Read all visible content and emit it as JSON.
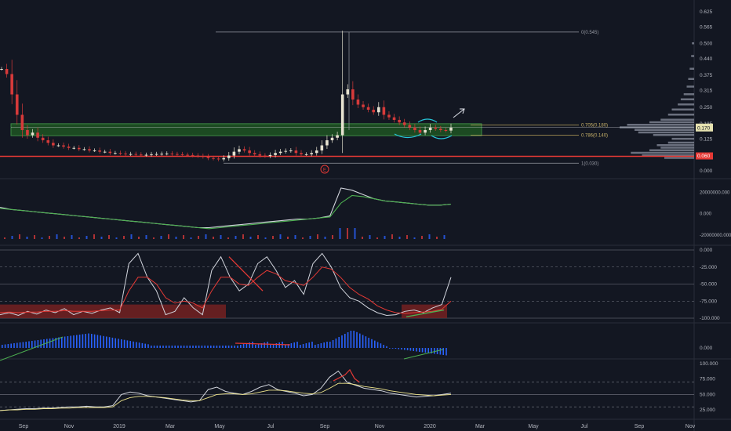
{
  "colors": {
    "background": "#131722",
    "grid": "#2a2e39",
    "up": "#e6e2d0",
    "down": "#d63a3a",
    "zone_fill": "#1f5c22",
    "zone_stroke": "#4caf50",
    "support_line": "#e53935",
    "white_line": "#d1d4dc",
    "red_line": "#e53935",
    "hist_blue": "#2962ff",
    "green_line": "#4caf50",
    "yellow_line": "#f0e68c",
    "oversold_fill": "#7a2222"
  },
  "chart_data": [
    {
      "type": "candlestick",
      "panel": "price",
      "y_ticks": [
        "0.625",
        "0.565",
        "0.500",
        "0.440",
        "0.375",
        "0.315",
        "0.250",
        "0.185",
        "0.125",
        "0.060",
        "0.000"
      ],
      "ylim": [
        0,
        0.64
      ],
      "current_price_label": "0.170",
      "current_price": 0.17,
      "support_label": "0.060",
      "support_price": 0.06,
      "fib_levels": [
        {
          "label": "0(0.545)",
          "price": 0.545
        },
        {
          "label": "0.705(0.180)",
          "price": 0.18
        },
        {
          "label": "0.786(0.140)",
          "price": 0.14
        },
        {
          "label": "1(0.030)",
          "price": 0.03
        }
      ],
      "accumulation_zone": [
        0.14,
        0.18
      ],
      "event_marker": "E",
      "close_series": [
        0.4,
        0.38,
        0.3,
        0.22,
        0.16,
        0.14,
        0.15,
        0.13,
        0.12,
        0.11,
        0.1,
        0.1,
        0.095,
        0.09,
        0.09,
        0.085,
        0.085,
        0.08,
        0.08,
        0.075,
        0.075,
        0.07,
        0.07,
        0.068,
        0.065,
        0.066,
        0.064,
        0.062,
        0.063,
        0.065,
        0.066,
        0.067,
        0.068,
        0.066,
        0.065,
        0.063,
        0.062,
        0.06,
        0.058,
        0.055,
        0.05,
        0.048,
        0.045,
        0.05,
        0.06,
        0.075,
        0.085,
        0.08,
        0.07,
        0.065,
        0.06,
        0.058,
        0.062,
        0.07,
        0.075,
        0.078,
        0.08,
        0.07,
        0.065,
        0.065,
        0.07,
        0.08,
        0.1,
        0.12,
        0.13,
        0.14,
        0.3,
        0.32,
        0.28,
        0.26,
        0.25,
        0.24,
        0.23,
        0.25,
        0.22,
        0.21,
        0.2,
        0.19,
        0.18,
        0.17,
        0.16,
        0.15,
        0.16,
        0.17,
        0.165,
        0.16,
        0.158,
        0.17
      ]
    },
    {
      "type": "line",
      "panel": "volume_oscillator",
      "y_ticks": [
        "20000000.000",
        "0.000",
        "-20000000.000"
      ],
      "series": [
        {
          "color_key": "white_line",
          "values": [
            6000000.0,
            4000000.0,
            3000000.0,
            2000000.0,
            1000000.0,
            0,
            -1000000.0,
            -2000000.0,
            -3000000.0,
            -4000000.0,
            -5000000.0,
            -6000000.0,
            -7000000.0,
            -8000000.0,
            -9000000.0,
            -10000000.0,
            -11000000.0,
            -12000000.0,
            -13000000.0,
            -13000000.0,
            -12000000.0,
            -11000000.0,
            -10000000.0,
            -9000000.0,
            -8000000.0,
            -7000000.0,
            -6000000.0,
            -5000000.0,
            -5000000.0,
            -4000000.0,
            -2000000.0,
            24000000.0,
            22000000.0,
            18000000.0,
            14000000.0,
            12000000.0,
            11000000.0,
            10000000.0,
            9000000.0,
            8000000.0,
            8000000.0,
            9000000.0
          ]
        },
        {
          "color_key": "green_line",
          "values": [
            5000000.0,
            4000000.0,
            3000000.0,
            2000000.0,
            1000000.0,
            0,
            -1000000.0,
            -2000000.0,
            -3000000.0,
            -4000000.0,
            -5000000.0,
            -6000000.0,
            -7000000.0,
            -8000000.0,
            -9000000.0,
            -10000000.0,
            -11000000.0,
            -12000000.0,
            -13000000.0,
            -14000000.0,
            -13000000.0,
            -12000000.0,
            -11000000.0,
            -10000000.0,
            -9000000.0,
            -8000000.0,
            -7000000.0,
            -6000000.0,
            -5000000.0,
            -4000000.0,
            -3000000.0,
            10000000.0,
            17000000.0,
            16000000.0,
            14000000.0,
            12000000.0,
            11000000.0,
            10000000.0,
            9000000.0,
            8000000.0,
            8000000.0,
            9000000.0
          ]
        }
      ]
    },
    {
      "type": "line",
      "panel": "williams_r",
      "y_ticks": [
        "0.000",
        "-25.000",
        "-50.000",
        "-75.000",
        "-100.000"
      ],
      "ylim": [
        -100,
        0
      ],
      "series": [
        {
          "color_key": "white_line",
          "values": [
            -95,
            -92,
            -96,
            -90,
            -94,
            -88,
            -92,
            -86,
            -95,
            -90,
            -93,
            -88,
            -85,
            -92,
            -20,
            -5,
            -40,
            -60,
            -95,
            -90,
            -70,
            -85,
            -95,
            -30,
            -10,
            -40,
            -60,
            -50,
            -20,
            -10,
            -30,
            -55,
            -45,
            -65,
            -20,
            -5,
            -25,
            -55,
            -70,
            -75,
            -85,
            -92,
            -96,
            -95,
            -90,
            -88,
            -92,
            -85,
            -80,
            -40
          ]
        },
        {
          "color_key": "red_line",
          "values": [
            -92,
            -91,
            -92,
            -91,
            -91,
            -90,
            -90,
            -89,
            -90,
            -90,
            -90,
            -89,
            -88,
            -88,
            -60,
            -40,
            -40,
            -50,
            -70,
            -78,
            -75,
            -78,
            -85,
            -60,
            -40,
            -40,
            -50,
            -52,
            -40,
            -30,
            -35,
            -45,
            -48,
            -52,
            -40,
            -25,
            -28,
            -40,
            -55,
            -65,
            -72,
            -82,
            -88,
            -92,
            -93,
            -92,
            -91,
            -90,
            -87,
            -75
          ]
        }
      ]
    },
    {
      "type": "bar",
      "panel": "histogram",
      "y_ticks": [
        "0.000"
      ]
    },
    {
      "type": "line",
      "panel": "rsi",
      "y_ticks": [
        "100.000",
        "75.000",
        "50.000",
        "25.000"
      ],
      "ylim": [
        15,
        100
      ],
      "series": [
        {
          "color_key": "white_line",
          "values": [
            24,
            25,
            26,
            27,
            27,
            28,
            28,
            29,
            30,
            30,
            31,
            30,
            30,
            32,
            50,
            54,
            52,
            48,
            46,
            44,
            42,
            40,
            38,
            40,
            58,
            62,
            55,
            52,
            50,
            55,
            62,
            66,
            58,
            55,
            52,
            48,
            50,
            60,
            78,
            88,
            70,
            65,
            60,
            58,
            56,
            52,
            50,
            48,
            46,
            47,
            48,
            50,
            52
          ]
        },
        {
          "color_key": "yellow_line",
          "values": [
            24,
            25,
            25,
            26,
            26,
            27,
            27,
            28,
            28,
            29,
            29,
            29,
            29,
            30,
            40,
            45,
            47,
            47,
            46,
            45,
            43,
            41,
            40,
            40,
            45,
            50,
            51,
            51,
            50,
            51,
            54,
            57,
            57,
            56,
            54,
            52,
            51,
            53,
            60,
            68,
            68,
            66,
            63,
            61,
            59,
            56,
            54,
            52,
            50,
            49,
            48,
            49,
            50
          ]
        }
      ]
    }
  ],
  "x_axis": {
    "labels": [
      "Sep",
      "Nov",
      "2019",
      "Mar",
      "May",
      "Jul",
      "Sep",
      "Nov",
      "2020",
      "Mar",
      "May",
      "Jul",
      "Sep",
      "Nov"
    ]
  }
}
